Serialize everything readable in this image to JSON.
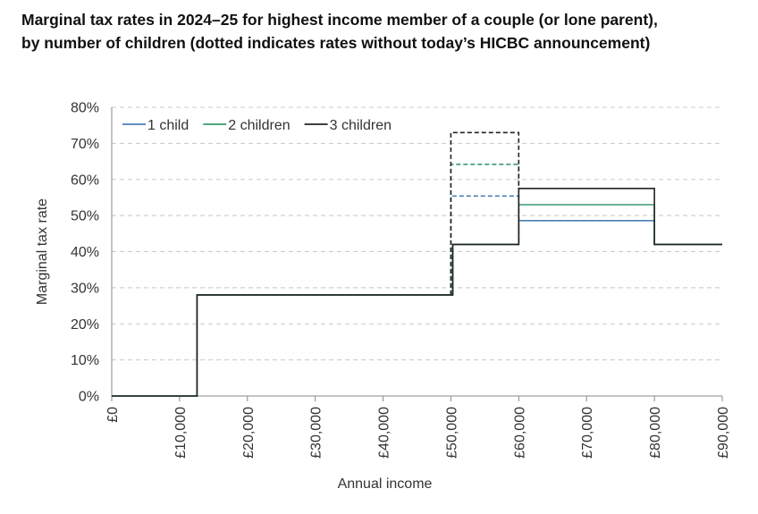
{
  "title_line1": "Marginal tax rates in 2024–25 for highest income member of a couple (or lone parent),",
  "title_line2": "by number of children (dotted indicates rates without today’s HICBC announcement)",
  "chart_data": {
    "type": "line",
    "xlabel": "Annual income",
    "ylabel": "Marginal tax rate",
    "xlim": [
      0,
      90000
    ],
    "ylim": [
      0,
      0.8
    ],
    "x_tick_values": [
      0,
      10000,
      20000,
      30000,
      40000,
      50000,
      60000,
      70000,
      80000,
      90000
    ],
    "x_tick_labels": [
      "£0",
      "£10,000",
      "£20,000",
      "£30,000",
      "£40,000",
      "£50,000",
      "£60,000",
      "£70,000",
      "£80,000",
      "£90,000"
    ],
    "y_tick_values": [
      0,
      0.1,
      0.2,
      0.3,
      0.4,
      0.5,
      0.6,
      0.7,
      0.8
    ],
    "y_tick_labels": [
      "0%",
      "10%",
      "20%",
      "30%",
      "40%",
      "50%",
      "60%",
      "70%",
      "80%"
    ],
    "grid": "horizontal dashed",
    "legend_position": "top-left",
    "series": [
      {
        "name": "1 child",
        "color": "#4a7fb5",
        "style": "solid",
        "x": [
          0,
          12570,
          12570,
          50270,
          50270,
          60000,
          60000,
          80000,
          80000,
          90000
        ],
        "y": [
          0,
          0,
          0.28,
          0.28,
          0.42,
          0.42,
          0.486,
          0.486,
          0.42,
          0.42
        ]
      },
      {
        "name": "2 children",
        "color": "#3a9a70",
        "style": "solid",
        "x": [
          0,
          12570,
          12570,
          50270,
          50270,
          60000,
          60000,
          80000,
          80000,
          90000
        ],
        "y": [
          0,
          0,
          0.28,
          0.28,
          0.42,
          0.42,
          0.53,
          0.53,
          0.42,
          0.42
        ]
      },
      {
        "name": "3 children",
        "color": "#222222",
        "style": "solid",
        "x": [
          0,
          12570,
          12570,
          50270,
          50270,
          60000,
          60000,
          80000,
          80000,
          90000
        ],
        "y": [
          0,
          0,
          0.28,
          0.28,
          0.42,
          0.42,
          0.575,
          0.575,
          0.42,
          0.42
        ]
      },
      {
        "color": "#4a7fb5",
        "style": "dotted",
        "x": [
          50000,
          50000,
          60000,
          60000
        ],
        "y": [
          0.28,
          0.554,
          0.554,
          0.42
        ]
      },
      {
        "color": "#3a9a70",
        "style": "dotted",
        "x": [
          50000,
          50000,
          60000,
          60000
        ],
        "y": [
          0.28,
          0.642,
          0.642,
          0.42
        ]
      },
      {
        "color": "#222222",
        "style": "dotted",
        "x": [
          50000,
          50000,
          60000,
          60000
        ],
        "y": [
          0.28,
          0.73,
          0.73,
          0.42
        ]
      }
    ]
  }
}
